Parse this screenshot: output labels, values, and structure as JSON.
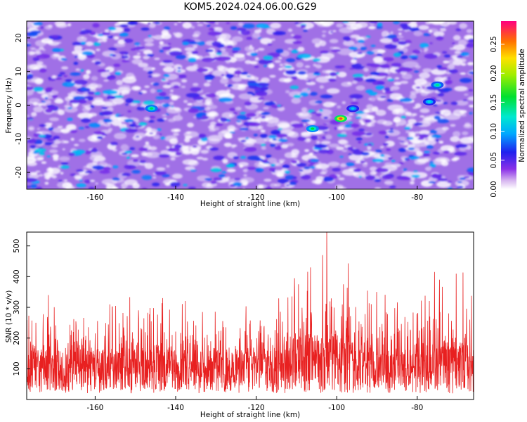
{
  "title": "KOM5.2024.024.06.00.G29",
  "colors": {
    "snr_line": "#e82020",
    "axis": "#000000"
  },
  "chart_data": [
    {
      "type": "heatmap",
      "xlabel": "Height of straight line (km)",
      "ylabel": "Frequency (Hz)",
      "xlim": [
        -177,
        -66
      ],
      "ylim": [
        -25,
        25
      ],
      "xticks": [
        "-160",
        "-140",
        "-120",
        "-100",
        "-80"
      ],
      "yticks": [
        "20",
        "10",
        "0",
        "-10",
        "-20"
      ],
      "colorbar": {
        "label": "Normalized spectral amplitude",
        "range": [
          0,
          0.29
        ],
        "ticks": [
          "0.00",
          "0.05",
          "0.10",
          "0.15",
          "0.20",
          "0.25"
        ]
      },
      "peaks": [
        {
          "x": -99,
          "y": -4,
          "value": 0.27
        },
        {
          "x": -106,
          "y": -7,
          "value": 0.16
        },
        {
          "x": -146,
          "y": -1,
          "value": 0.15
        },
        {
          "x": -75,
          "y": 6,
          "value": 0.14
        },
        {
          "x": -96,
          "y": -1,
          "value": 0.11
        },
        {
          "x": -77,
          "y": 1,
          "value": 0.12
        }
      ]
    },
    {
      "type": "line",
      "xlabel": "Height of straight line (km)",
      "ylabel": "SNR (10 * v/v)",
      "xlim": [
        -177,
        -66
      ],
      "ylim": [
        0,
        545
      ],
      "xticks": [
        "-160",
        "-140",
        "-120",
        "-100",
        "-80"
      ],
      "yticks": [
        "100",
        "200",
        "300",
        "400",
        "500"
      ],
      "baseline_mean": 110,
      "peaks": [
        {
          "x": -102.5,
          "y": 545
        },
        {
          "x": -103.5,
          "y": 470
        },
        {
          "x": -106.5,
          "y": 430
        },
        {
          "x": -110.5,
          "y": 395
        },
        {
          "x": -75.7,
          "y": 415
        },
        {
          "x": -70.3,
          "y": 410
        },
        {
          "x": -74.5,
          "y": 390
        },
        {
          "x": -98.3,
          "y": 375
        },
        {
          "x": -90.1,
          "y": 350
        },
        {
          "x": -171.6,
          "y": 340
        },
        {
          "x": -143.2,
          "y": 330
        }
      ]
    }
  ]
}
